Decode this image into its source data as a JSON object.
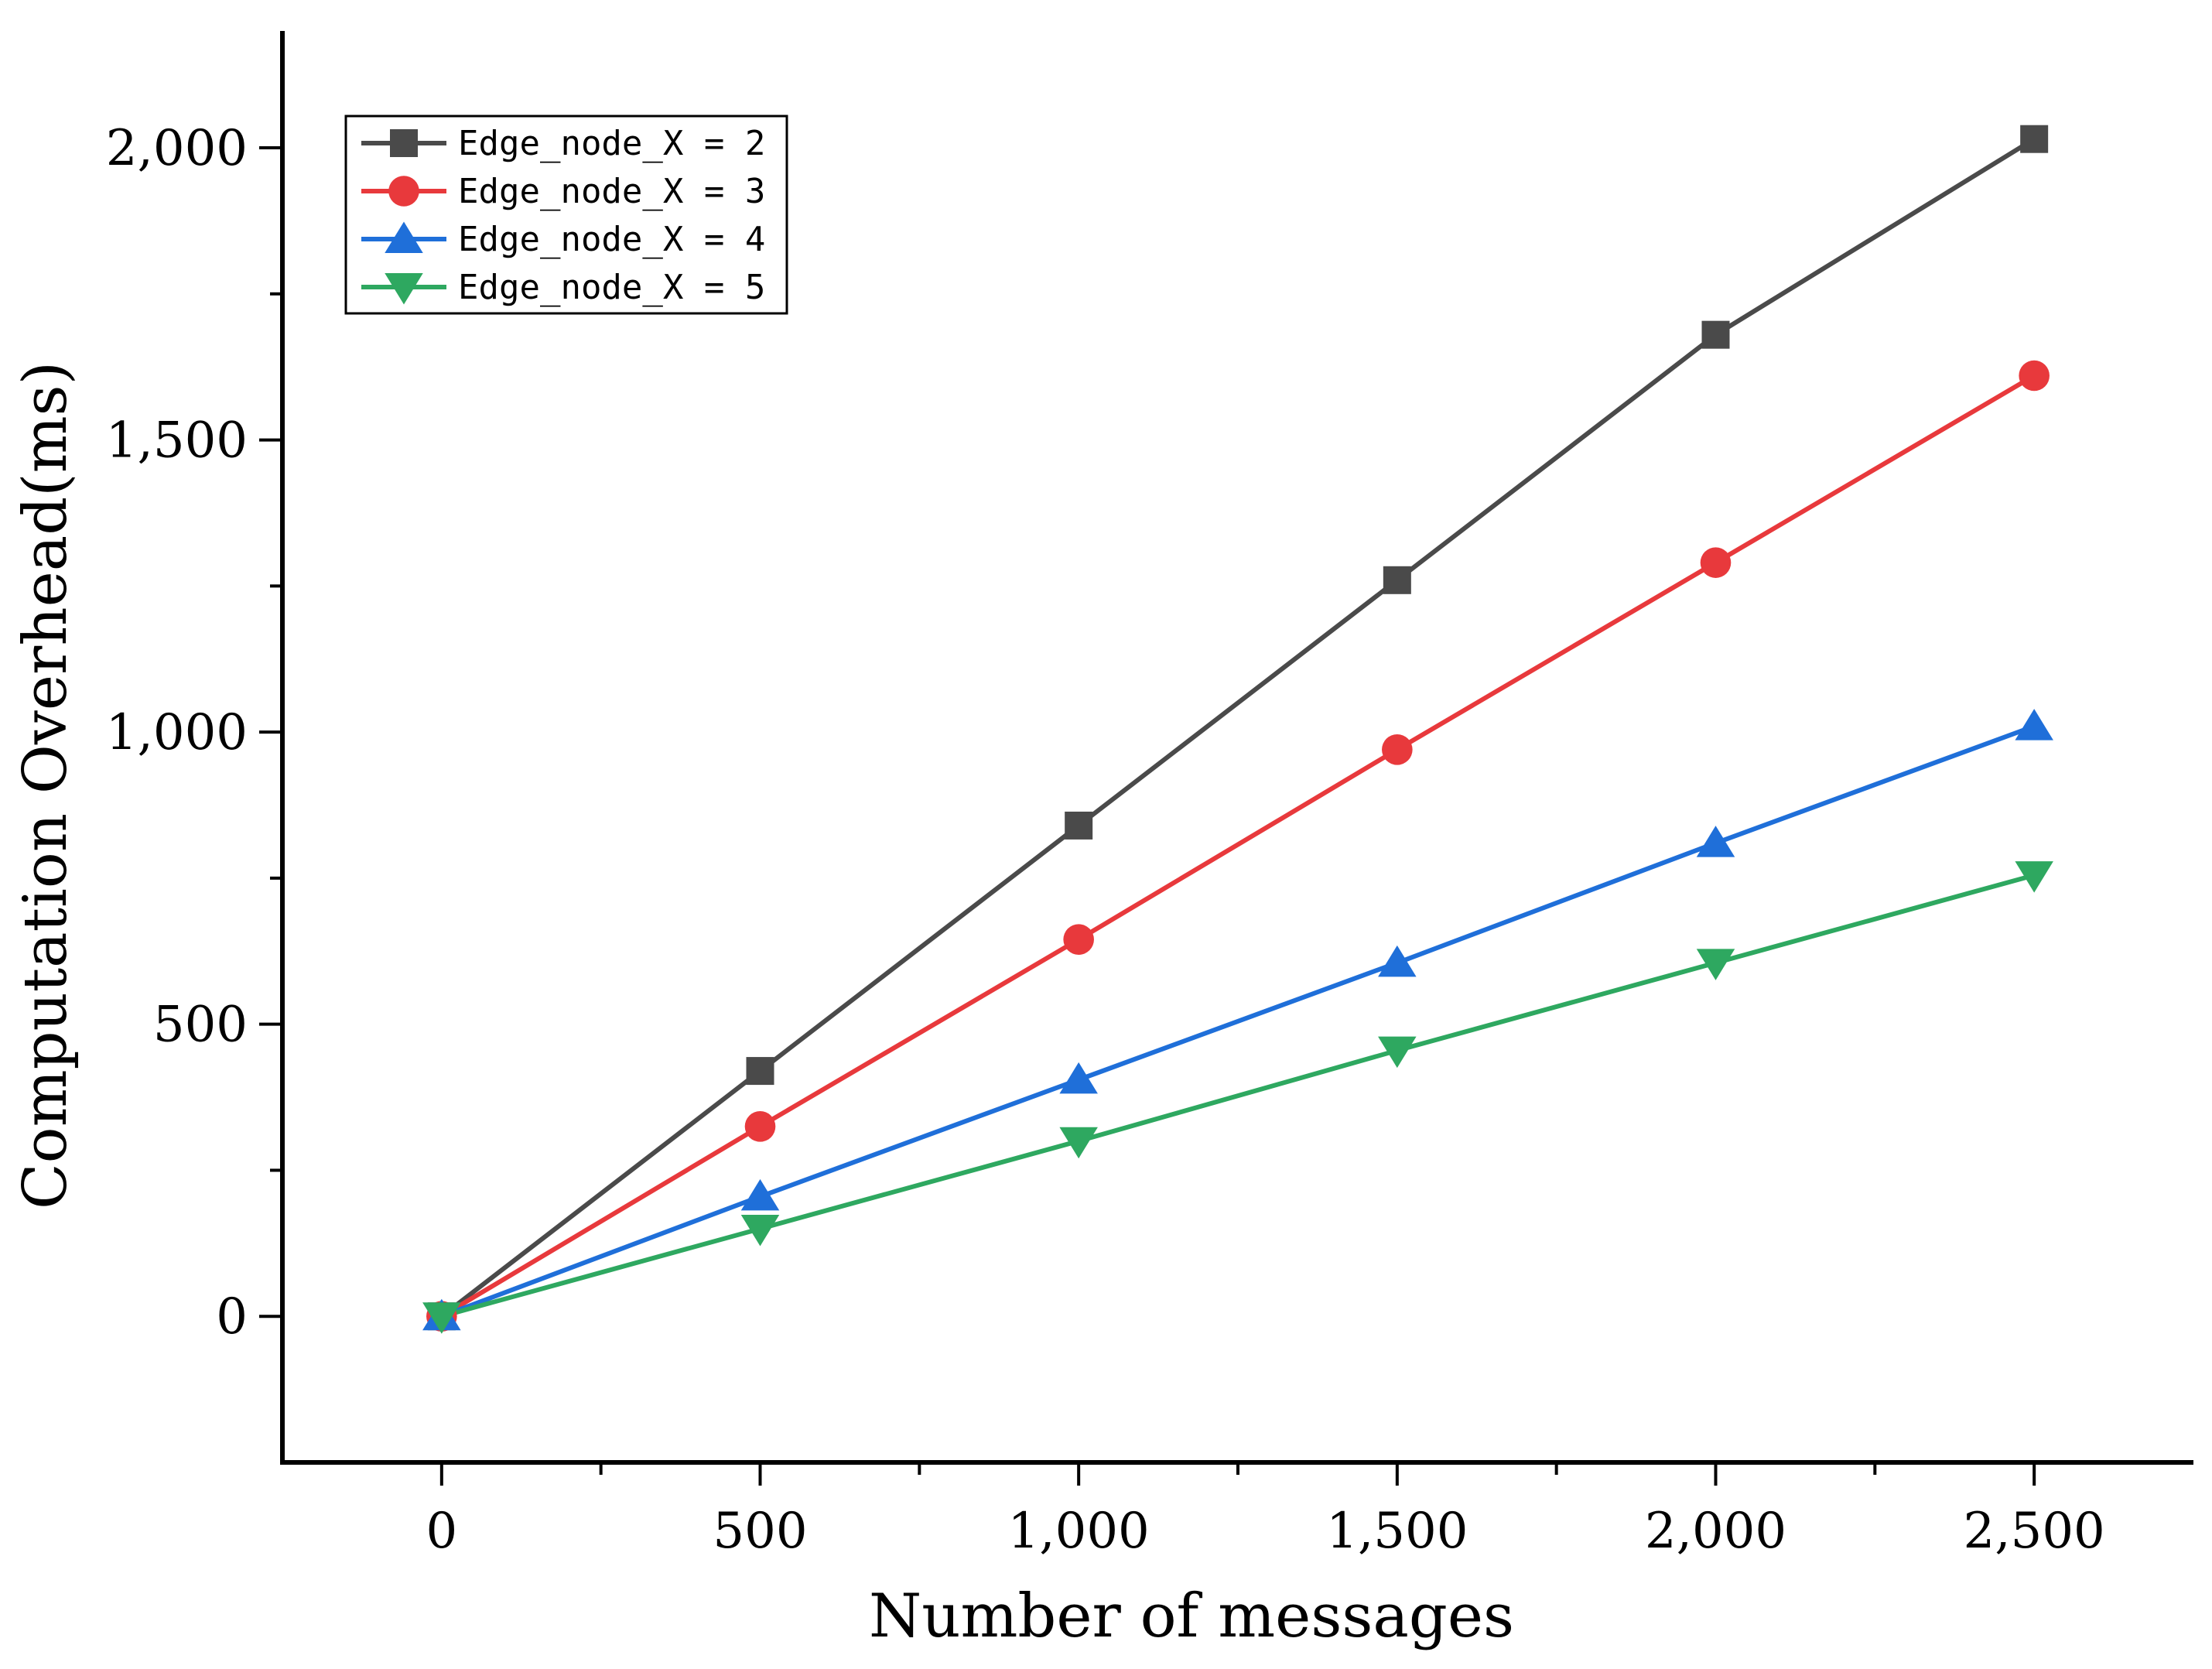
{
  "chart_data": {
    "type": "line",
    "title": "",
    "xlabel": "Number of messages",
    "ylabel": "Computation Overhead(ms)",
    "xlim": [
      -250,
      2750
    ],
    "ylim": [
      -250,
      2200
    ],
    "x_ticks": [
      0,
      500,
      1000,
      1500,
      2000,
      2500
    ],
    "x_tick_labels": [
      "0",
      "500",
      "1,000",
      "1,500",
      "2,000",
      "2,500"
    ],
    "x_minor_ticks": [
      250,
      750,
      1250,
      1750,
      2250
    ],
    "y_ticks": [
      0,
      500,
      1000,
      1500,
      2000
    ],
    "y_tick_labels": [
      "0",
      "500",
      "1,000",
      "1,500",
      "2,000"
    ],
    "y_minor_ticks": [
      250,
      750,
      1250,
      1750
    ],
    "grid": false,
    "legend_position": "top-left",
    "x": [
      0,
      500,
      1000,
      1500,
      2000,
      2500
    ],
    "series": [
      {
        "name": "Edge_node_X = 2",
        "color": "#4a4a4a",
        "marker": "square",
        "values": [
          0,
          420,
          840,
          1260,
          1680,
          2015
        ]
      },
      {
        "name": "Edge_node_X = 3",
        "color": "#e8393c",
        "marker": "circle",
        "values": [
          0,
          325,
          645,
          970,
          1290,
          1610
        ]
      },
      {
        "name": "Edge_node_X = 4",
        "color": "#1f6fd9",
        "marker": "triangle-up",
        "values": [
          0,
          205,
          405,
          605,
          810,
          1010
        ]
      },
      {
        "name": "Edge_node_X = 5",
        "color": "#2ea860",
        "marker": "triangle-down",
        "values": [
          0,
          150,
          300,
          455,
          605,
          755
        ]
      }
    ]
  }
}
